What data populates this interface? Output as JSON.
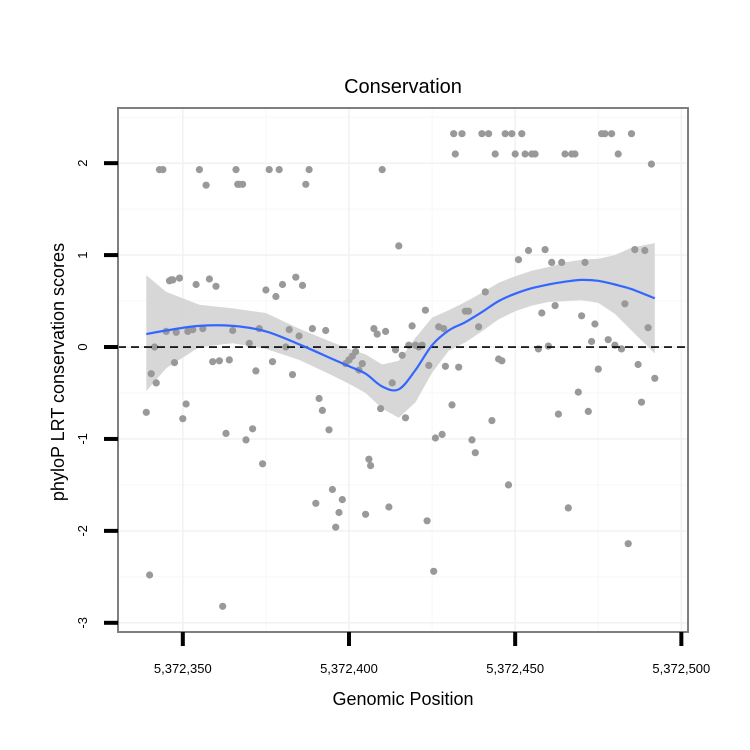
{
  "chart_data": {
    "type": "scatter",
    "title": "Conservation",
    "xlabel": "Genomic Position",
    "ylabel": "phyloP LRT conservation scores",
    "xlim": [
      5372330.5,
      5372502
    ],
    "ylim": [
      -3.1,
      2.6
    ],
    "x_ticks": [
      5372350,
      5372400,
      5372450,
      5372500
    ],
    "x_tick_labels": [
      "5,372,350",
      "5,372,400",
      "5,372,450",
      "5,372,500"
    ],
    "y_ticks": [
      -3,
      -2,
      -1,
      0,
      1,
      2
    ],
    "y_tick_labels": [
      "-3",
      "-2",
      "-1",
      "0",
      "1",
      "2"
    ],
    "reference_line": {
      "y": 0,
      "style": "dashed",
      "color": "#000000"
    },
    "colors": {
      "points": "#999999",
      "smooth": "#3366ff",
      "ribbon": "#d3d3d3",
      "panel_border": "#7f7f7f"
    },
    "points": [
      [
        5372339,
        -0.71
      ],
      [
        5372340,
        -2.48
      ],
      [
        5372340.5,
        -0.29
      ],
      [
        5372341.5,
        0.0
      ],
      [
        5372342,
        -0.39
      ],
      [
        5372343,
        1.93
      ],
      [
        5372344,
        1.93
      ],
      [
        5372345,
        0.17
      ],
      [
        5372346,
        0.72
      ],
      [
        5372346.5,
        0.73
      ],
      [
        5372347,
        0.73
      ],
      [
        5372347.5,
        -0.17
      ],
      [
        5372348,
        0.16
      ],
      [
        5372349,
        0.75
      ],
      [
        5372350,
        -0.78
      ],
      [
        5372351,
        -0.62
      ],
      [
        5372351.5,
        0.17
      ],
      [
        5372353,
        0.19
      ],
      [
        5372354,
        0.68
      ],
      [
        5372355,
        1.93
      ],
      [
        5372356,
        0.2
      ],
      [
        5372357,
        1.76
      ],
      [
        5372358,
        0.74
      ],
      [
        5372359,
        -0.16
      ],
      [
        5372360,
        0.66
      ],
      [
        5372361,
        -0.15
      ],
      [
        5372362,
        -2.82
      ],
      [
        5372363,
        -0.94
      ],
      [
        5372364,
        -0.14
      ],
      [
        5372365,
        0.18
      ],
      [
        5372366,
        1.93
      ],
      [
        5372366.5,
        1.77
      ],
      [
        5372367,
        1.77
      ],
      [
        5372368,
        1.77
      ],
      [
        5372369,
        -1.01
      ],
      [
        5372370,
        0.04
      ],
      [
        5372371,
        -0.89
      ],
      [
        5372372,
        -0.26
      ],
      [
        5372373,
        0.2
      ],
      [
        5372374,
        -1.27
      ],
      [
        5372375,
        0.62
      ],
      [
        5372376,
        1.93
      ],
      [
        5372377,
        -0.16
      ],
      [
        5372378,
        0.55
      ],
      [
        5372379,
        1.93
      ],
      [
        5372380,
        0.68
      ],
      [
        5372381,
        0.0
      ],
      [
        5372382,
        0.19
      ],
      [
        5372383,
        -0.3
      ],
      [
        5372384,
        0.76
      ],
      [
        5372385,
        0.12
      ],
      [
        5372386,
        0.67
      ],
      [
        5372387,
        1.77
      ],
      [
        5372388,
        1.93
      ],
      [
        5372389,
        0.2
      ],
      [
        5372390,
        -1.7
      ],
      [
        5372391,
        -0.56
      ],
      [
        5372392,
        -0.69
      ],
      [
        5372393,
        0.18
      ],
      [
        5372394,
        -0.9
      ],
      [
        5372395,
        -1.55
      ],
      [
        5372396,
        -1.96
      ],
      [
        5372397,
        -1.8
      ],
      [
        5372398,
        -1.66
      ],
      [
        5372399,
        -0.18
      ],
      [
        5372400,
        -0.14
      ],
      [
        5372401,
        -0.1
      ],
      [
        5372402,
        -0.05
      ],
      [
        5372403,
        -0.25
      ],
      [
        5372404,
        -0.18
      ],
      [
        5372405,
        -1.82
      ],
      [
        5372406,
        -1.22
      ],
      [
        5372406.5,
        -1.29
      ],
      [
        5372407.5,
        0.2
      ],
      [
        5372408.5,
        0.14
      ],
      [
        5372409.5,
        -0.67
      ],
      [
        5372410,
        1.93
      ],
      [
        5372411,
        0.17
      ],
      [
        5372412,
        -1.74
      ],
      [
        5372413,
        -0.39
      ],
      [
        5372414,
        -0.03
      ],
      [
        5372415,
        1.1
      ],
      [
        5372416,
        -0.09
      ],
      [
        5372417,
        -0.77
      ],
      [
        5372418,
        0.02
      ],
      [
        5372419,
        0.23
      ],
      [
        5372420,
        0.02
      ],
      [
        5372421,
        0.0
      ],
      [
        5372422,
        0.02
      ],
      [
        5372423,
        0.4
      ],
      [
        5372423.5,
        -1.89
      ],
      [
        5372424,
        -0.2
      ],
      [
        5372425.5,
        -2.44
      ],
      [
        5372426,
        -0.99
      ],
      [
        5372427,
        0.22
      ],
      [
        5372428,
        -0.95
      ],
      [
        5372428.5,
        0.2
      ],
      [
        5372429,
        -0.21
      ],
      [
        5372431,
        -0.63
      ],
      [
        5372431.5,
        2.32
      ],
      [
        5372432,
        2.1
      ],
      [
        5372433,
        -0.22
      ],
      [
        5372434,
        2.32
      ],
      [
        5372435,
        0.39
      ],
      [
        5372436,
        0.39
      ],
      [
        5372437,
        -1.01
      ],
      [
        5372438,
        -1.15
      ],
      [
        5372439,
        0.22
      ],
      [
        5372440,
        2.32
      ],
      [
        5372441,
        0.6
      ],
      [
        5372442,
        2.32
      ],
      [
        5372443,
        -0.8
      ],
      [
        5372444,
        2.1
      ],
      [
        5372445,
        -0.13
      ],
      [
        5372446,
        -0.15
      ],
      [
        5372447,
        2.32
      ],
      [
        5372448,
        -1.5
      ],
      [
        5372449,
        2.32
      ],
      [
        5372450,
        2.1
      ],
      [
        5372451,
        0.95
      ],
      [
        5372452,
        2.32
      ],
      [
        5372453,
        2.1
      ],
      [
        5372454,
        1.05
      ],
      [
        5372455,
        2.1
      ],
      [
        5372456,
        2.1
      ],
      [
        5372457,
        -0.02
      ],
      [
        5372458,
        0.37
      ],
      [
        5372459,
        1.06
      ],
      [
        5372460,
        0.01
      ],
      [
        5372461,
        0.92
      ],
      [
        5372462,
        0.45
      ],
      [
        5372463,
        -0.73
      ],
      [
        5372464,
        0.92
      ],
      [
        5372465,
        2.1
      ],
      [
        5372466,
        -1.75
      ],
      [
        5372467,
        2.1
      ],
      [
        5372468,
        2.1
      ],
      [
        5372469,
        -0.49
      ],
      [
        5372470,
        0.34
      ],
      [
        5372471,
        0.92
      ],
      [
        5372472,
        -0.7
      ],
      [
        5372473,
        0.06
      ],
      [
        5372474,
        0.25
      ],
      [
        5372475,
        -0.24
      ],
      [
        5372476,
        2.32
      ],
      [
        5372477,
        2.32
      ],
      [
        5372478,
        0.08
      ],
      [
        5372479,
        2.32
      ],
      [
        5372480,
        0.02
      ],
      [
        5372481,
        2.1
      ],
      [
        5372482,
        -0.02
      ],
      [
        5372483,
        0.47
      ],
      [
        5372484,
        -2.14
      ],
      [
        5372485,
        2.32
      ],
      [
        5372486,
        1.06
      ],
      [
        5372487,
        -0.19
      ],
      [
        5372488,
        -0.6
      ],
      [
        5372489,
        1.05
      ],
      [
        5372490,
        0.21
      ],
      [
        5372491,
        1.99
      ],
      [
        5372492,
        -0.34
      ]
    ],
    "smooth": {
      "x": [
        5372339,
        5372345,
        5372355,
        5372365,
        5372375,
        5372385,
        5372395,
        5372400,
        5372405,
        5372410,
        5372415,
        5372420,
        5372425,
        5372430,
        5372435,
        5372440,
        5372445,
        5372450,
        5372455,
        5372460,
        5372465,
        5372470,
        5372475,
        5372480,
        5372485,
        5372492
      ],
      "y": [
        0.14,
        0.18,
        0.23,
        0.23,
        0.17,
        0.03,
        -0.13,
        -0.21,
        -0.29,
        -0.43,
        -0.46,
        -0.25,
        0.02,
        0.18,
        0.27,
        0.38,
        0.5,
        0.58,
        0.64,
        0.68,
        0.71,
        0.73,
        0.72,
        0.68,
        0.63,
        0.53
      ],
      "lower": [
        -0.48,
        -0.23,
        0.0,
        0.04,
        -0.02,
        -0.14,
        -0.31,
        -0.4,
        -0.5,
        -0.67,
        -0.77,
        -0.6,
        -0.28,
        -0.04,
        0.05,
        0.17,
        0.3,
        0.39,
        0.45,
        0.49,
        0.5,
        0.51,
        0.48,
        0.36,
        0.18,
        -0.07
      ],
      "upper": [
        0.78,
        0.6,
        0.46,
        0.42,
        0.37,
        0.2,
        0.05,
        -0.02,
        -0.08,
        -0.19,
        -0.15,
        0.1,
        0.32,
        0.4,
        0.49,
        0.59,
        0.7,
        0.77,
        0.83,
        0.87,
        0.92,
        0.95,
        0.96,
        1.0,
        1.08,
        1.13
      ]
    },
    "grid": true,
    "legend": "none"
  }
}
